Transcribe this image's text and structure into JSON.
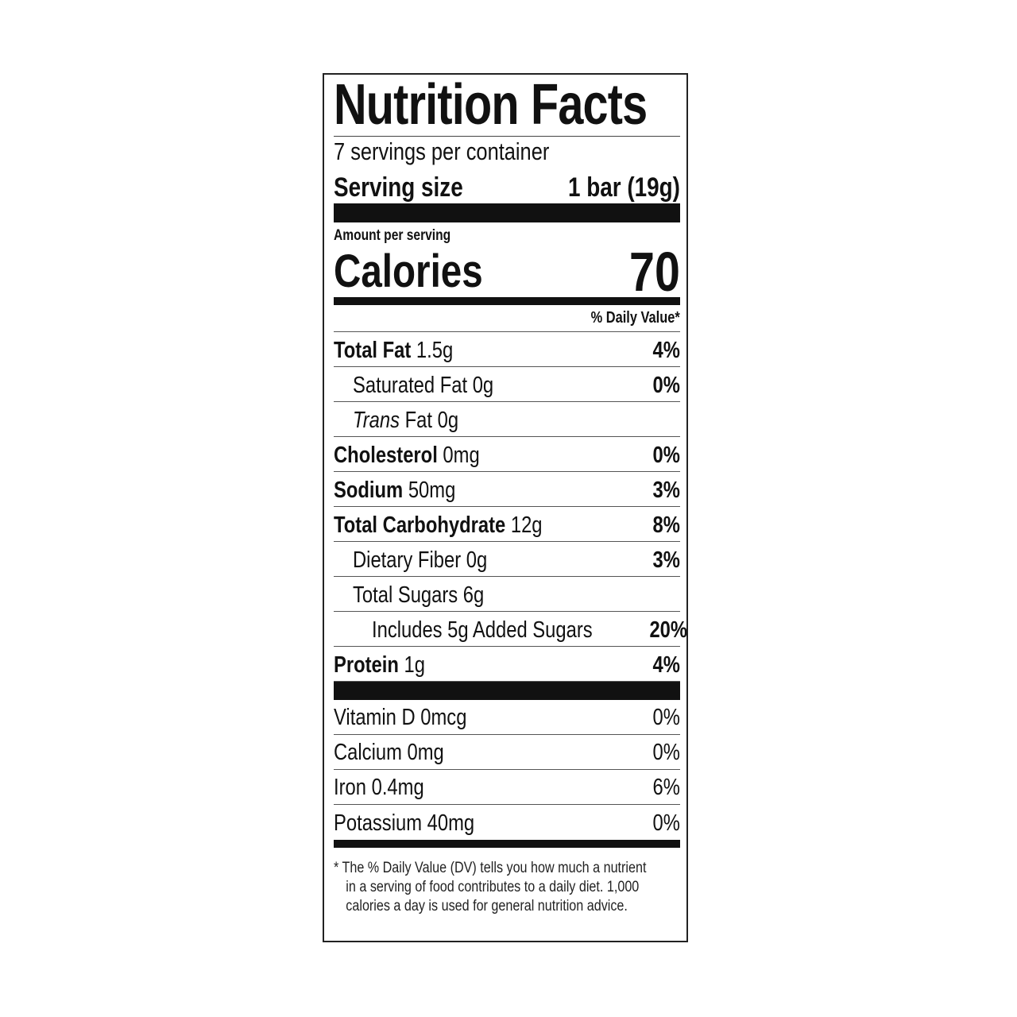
{
  "title": "Nutrition Facts",
  "servings_per_container": "7 servings per container",
  "serving_size": {
    "label": "Serving size",
    "value": "1 bar (19g)"
  },
  "amount_per_serving": "Amount per serving",
  "calories": {
    "label": "Calories",
    "value": "70"
  },
  "daily_value_header": "% Daily Value*",
  "nutrients": [
    {
      "name": "Total Fat",
      "amount": "1.5g",
      "dv": "4%",
      "bold": true,
      "indent": 0
    },
    {
      "name": "Saturated Fat",
      "amount": "0g",
      "dv": "0%",
      "bold": false,
      "indent": 1
    },
    {
      "name": "Trans",
      "name_rest": "Fat",
      "amount": "0g",
      "dv": "",
      "bold": false,
      "indent": 1
    },
    {
      "name": "Cholesterol",
      "amount": "0mg",
      "dv": "0%",
      "bold": true,
      "indent": 0
    },
    {
      "name": "Sodium",
      "amount": "50mg",
      "dv": "3%",
      "bold": true,
      "indent": 0
    },
    {
      "name": "Total Carbohydrate",
      "amount": "12g",
      "dv": "8%",
      "bold": true,
      "indent": 0
    },
    {
      "name": "Dietary Fiber",
      "amount": "0g",
      "dv": "3%",
      "bold": false,
      "indent": 1
    },
    {
      "name": "Total Sugars",
      "amount": "6g",
      "dv": "",
      "bold": false,
      "indent": 1
    },
    {
      "name": "Includes 5g Added Sugars",
      "amount": "",
      "dv": "20%",
      "bold": false,
      "indent": 2
    },
    {
      "name": "Protein",
      "amount": "1g",
      "dv": "4%",
      "bold": true,
      "indent": 0
    }
  ],
  "vitamins": [
    {
      "name": "Vitamin D",
      "amount": "0mcg",
      "dv": "0%"
    },
    {
      "name": "Calcium",
      "amount": "0mg",
      "dv": "0%"
    },
    {
      "name": "Iron",
      "amount": "0.4mg",
      "dv": "6%"
    },
    {
      "name": "Potassium",
      "amount": "40mg",
      "dv": "0%"
    }
  ],
  "footnote": [
    "* The % Daily Value (DV) tells you how much a nutrient",
    "in a serving of food contributes to a daily diet. 1,000",
    "calories a day is used for general nutrition advice."
  ]
}
